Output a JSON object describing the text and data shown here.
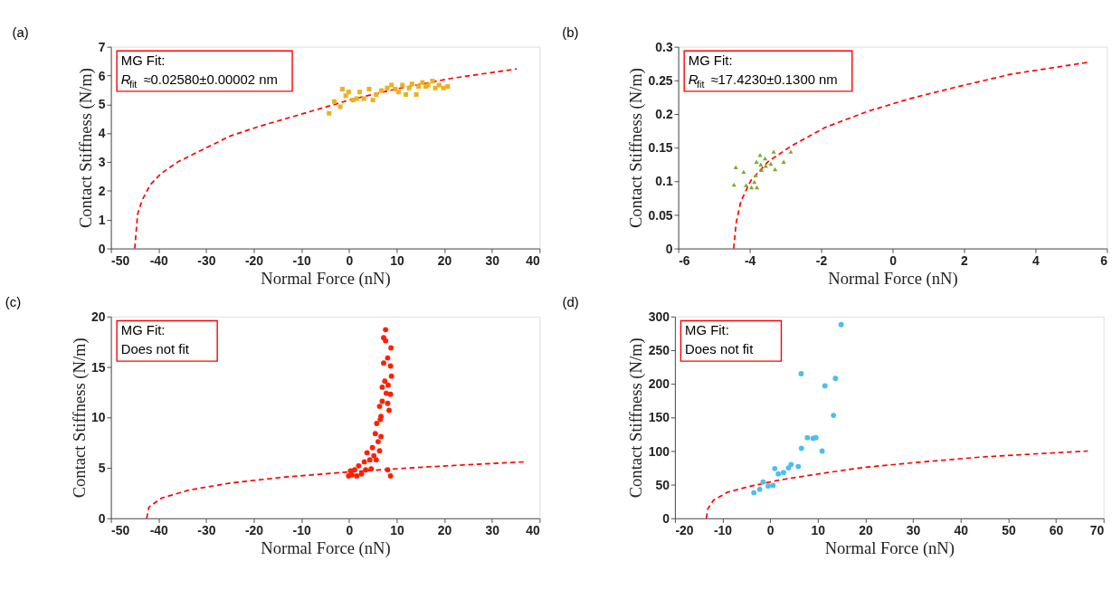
{
  "chart_data": [
    {
      "type": "scatter",
      "title": "(a)",
      "xlabel": "Normal Force (nN)",
      "ylabel": "Contact Stiffness (N/m)",
      "xlim": [
        -50,
        40
      ],
      "ylim": [
        0,
        7
      ],
      "xticks": [
        -50,
        -40,
        -30,
        -20,
        -10,
        0,
        10,
        20,
        30,
        40
      ],
      "yticks": [
        0,
        1,
        2,
        3,
        4,
        5,
        6,
        7
      ],
      "annotations": [
        "MG Fit:",
        "R$_{fit}$≈0.02580±0.00002 nm"
      ],
      "series": [
        {
          "type": "scatter",
          "marker": "square",
          "color": "#edb120",
          "x": [
            -4.2,
            -3.1,
            -1.85,
            -1.4,
            -0.7,
            -0.1,
            0.8,
            1.6,
            2.2,
            3.1,
            4.2,
            5.0,
            5.7,
            6.8,
            8.0,
            8.9,
            9.7,
            10.4,
            11.2,
            11.9,
            12.6,
            13.2,
            14.1,
            14.6,
            15.4,
            16.1,
            16.6,
            17.5,
            18.1,
            18.9,
            19.8,
            20.7
          ],
          "values": [
            4.69,
            5.1,
            4.92,
            5.53,
            5.3,
            5.43,
            5.15,
            5.2,
            5.43,
            5.2,
            5.53,
            5.15,
            5.34,
            5.48,
            5.57,
            5.67,
            5.53,
            5.43,
            5.67,
            5.34,
            5.57,
            5.71,
            5.34,
            5.62,
            5.76,
            5.62,
            5.67,
            5.81,
            5.57,
            5.67,
            5.57,
            5.62
          ]
        },
        {
          "type": "line",
          "line_style": "dashed",
          "marker": "none",
          "color": "#ff0000",
          "x": [
            -45,
            -44.4,
            -43.5,
            -41.8,
            -39.5,
            -36,
            -30.8,
            -25,
            -19.2,
            -13.4,
            -4.7,
            0,
            9.7,
            21.3,
            35.2
          ],
          "values": [
            0,
            1.2,
            1.66,
            2.2,
            2.6,
            3.0,
            3.43,
            3.9,
            4.22,
            4.5,
            4.92,
            5.15,
            5.53,
            5.9,
            6.23
          ]
        }
      ]
    },
    {
      "type": "scatter",
      "title": "(b)",
      "xlabel": "Normal Force (nN)",
      "ylabel": "Contact Stiffness (N/m)",
      "xlim": [
        -6,
        6
      ],
      "ylim": [
        0,
        0.3
      ],
      "xticks": [
        -6,
        -4,
        -2,
        0,
        2,
        4,
        6
      ],
      "yticks": [
        0,
        0.05,
        0.1,
        0.15,
        0.2,
        0.25,
        0.3
      ],
      "annotations": [
        "MG Fit:",
        "R$_{fit}$≈17.4230±0.1300 nm"
      ],
      "series": [
        {
          "type": "scatter",
          "marker": "triangle",
          "color": "#77ac30",
          "x": [
            -4.39,
            -4.44,
            -4.17,
            -4.1,
            -3.95,
            -3.8,
            -3.87,
            -3.83,
            -3.81,
            -3.71,
            -3.69,
            -3.67,
            -3.57,
            -3.55,
            -3.41,
            -3.33,
            -3.29,
            -3.05,
            -2.85
          ],
          "values": [
            0.121,
            0.095,
            0.114,
            0.094,
            0.091,
            0.091,
            0.099,
            0.109,
            0.129,
            0.139,
            0.125,
            0.117,
            0.134,
            0.123,
            0.126,
            0.144,
            0.118,
            0.129,
            0.144
          ]
        },
        {
          "type": "line",
          "line_style": "dashed",
          "marker": "none",
          "color": "#ff0000",
          "x": [
            -4.45,
            -4.38,
            -4.25,
            -3.97,
            -3.49,
            -2.85,
            -1.89,
            -0.7,
            0.5,
            1.7,
            3.29,
            5.48
          ],
          "values": [
            0,
            0.038,
            0.07,
            0.101,
            0.129,
            0.152,
            0.18,
            0.204,
            0.223,
            0.239,
            0.259,
            0.277
          ]
        }
      ]
    },
    {
      "type": "scatter",
      "title": "(c)",
      "xlabel": "Normal Force (nN)",
      "ylabel": "Contact Stiffness (N/m)",
      "xlim": [
        -50,
        40
      ],
      "ylim": [
        0,
        20
      ],
      "xticks": [
        -50,
        -40,
        -30,
        -20,
        -10,
        0,
        10,
        20,
        30,
        40
      ],
      "yticks": [
        0,
        5,
        10,
        15,
        20
      ],
      "annotations": [
        "MG Fit:",
        "Does not fit"
      ],
      "series": [
        {
          "type": "scatter",
          "marker": "circle",
          "color": "#ff2000",
          "x": [
            7.66,
            7.25,
            7.66,
            8.8,
            7.25,
            8.1,
            8.7,
            8.9,
            7.5,
            6.96,
            8.2,
            7.8,
            8.7,
            6.96,
            8.1,
            6.4,
            8.4,
            6.7,
            5.8,
            6.55,
            5.5,
            6.7,
            6.1,
            4.9,
            6.4,
            3.77,
            5.2,
            4.35,
            5.7,
            3.2,
            4.64,
            2.0,
            3.48,
            1.16,
            2.6,
            0.3,
            -0.1,
            0.6,
            1.6,
            8.1,
            8.7
          ],
          "values": [
            18.7,
            17.9,
            17.6,
            16.9,
            15.4,
            15.9,
            15.1,
            14.1,
            13.6,
            13.0,
            13.2,
            12.4,
            12.3,
            11.6,
            11.4,
            11.1,
            10.7,
            10.1,
            9.4,
            9.8,
            8.4,
            8.1,
            7.6,
            7.0,
            6.7,
            6.5,
            6.2,
            5.8,
            5.8,
            5.6,
            4.9,
            5.2,
            4.8,
            4.8,
            4.4,
            4.7,
            4.2,
            4.3,
            4.2,
            4.8,
            4.2
          ]
        },
        {
          "type": "line",
          "line_style": "dashed",
          "marker": "none",
          "color": "#ff0000",
          "x": [
            -42.5,
            -42.05,
            -39.4,
            -33.6,
            -24.9,
            -13.3,
            0,
            12.8,
            24.4,
            37.0
          ],
          "values": [
            0,
            1.1,
            2.0,
            2.8,
            3.5,
            4.1,
            4.6,
            5.0,
            5.3,
            5.6
          ]
        }
      ]
    },
    {
      "type": "scatter",
      "title": "(d)",
      "xlabel": "Normal Force (nN)",
      "ylabel": "Contact Stiffness (N/m)",
      "xlim": [
        -20,
        70
      ],
      "ylim": [
        0,
        300
      ],
      "xticks": [
        -20,
        -10,
        0,
        10,
        20,
        30,
        40,
        50,
        60,
        70
      ],
      "yticks": [
        0,
        50,
        100,
        150,
        200,
        250,
        300
      ],
      "annotations": [
        "MG Fit:",
        "Does not fit"
      ],
      "series": [
        {
          "type": "scatter",
          "marker": "circle",
          "color": "#4dbeee",
          "x": [
            -3.43,
            -2.2,
            -1.5,
            -0.42,
            0.6,
            0.96,
            1.7,
            2.8,
            3.85,
            4.4,
            5.9,
            6.56,
            6.5,
            7.8,
            9.0,
            9.6,
            10.9,
            11.5,
            13.3,
            13.7,
            14.9
          ],
          "values": [
            38,
            43,
            54,
            48,
            49,
            74,
            66,
            68,
            75,
            80,
            77,
            104,
            215,
            120,
            119,
            120,
            100,
            197,
            153,
            208,
            288
          ]
        },
        {
          "type": "line",
          "line_style": "dashed",
          "marker": "none",
          "color": "#ff0000",
          "x": [
            -13.4,
            -13.1,
            -11.9,
            -8.9,
            -4.0,
            2.0,
            11.0,
            20.0,
            32.1,
            44.1,
            56.1,
            66.7
          ],
          "values": [
            0,
            14,
            27,
            39,
            48,
            57,
            67,
            76,
            84,
            91,
            96,
            100
          ]
        }
      ]
    }
  ]
}
